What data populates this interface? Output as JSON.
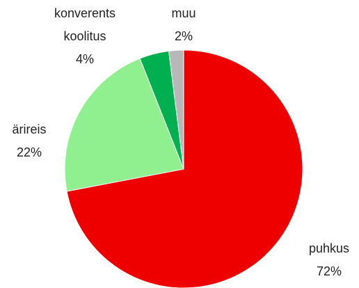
{
  "chart_data": {
    "type": "pie",
    "categories": [
      "puhkus",
      "ärireis",
      "konverents koolitus",
      "muu"
    ],
    "values": [
      72,
      22,
      4,
      2
    ],
    "value_labels": [
      "72%",
      "22%",
      "4%",
      "2%"
    ],
    "colors": [
      "#ee0000",
      "#90f090",
      "#00b050",
      "#b8b8b8"
    ]
  }
}
